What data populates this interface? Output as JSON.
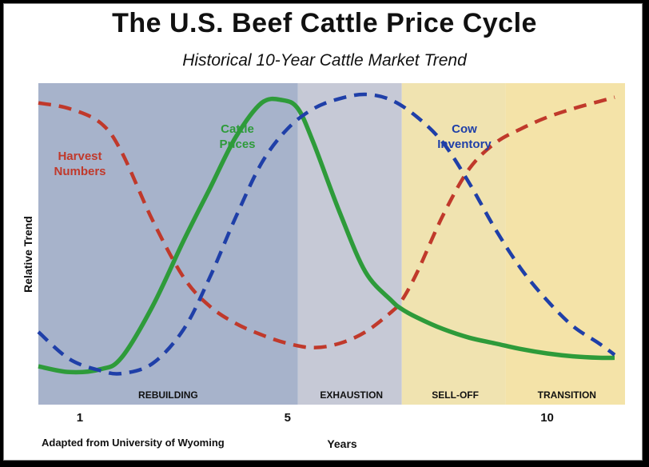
{
  "chart_data": {
    "type": "line",
    "title": "The U.S. Beef Cattle Price Cycle",
    "subtitle": "Historical 10-Year Cattle Market Trend",
    "xlabel": "Years",
    "ylabel": "Relative Trend",
    "credit": "Adapted from University of Wyoming",
    "xlim": [
      0.2,
      11.5
    ],
    "ylim": [
      0,
      10
    ],
    "x_ticks": [
      {
        "value": 1,
        "label": "1"
      },
      {
        "value": 5,
        "label": "5"
      },
      {
        "value": 10,
        "label": "10"
      }
    ],
    "phases": [
      {
        "label": "REBUILDING",
        "start": 0.2,
        "end": 5.2,
        "color": "#a7b3cb"
      },
      {
        "label": "EXHAUSTION",
        "start": 5.2,
        "end": 7.2,
        "color": "#c6c9d6"
      },
      {
        "label": "SELL-OFF",
        "start": 7.2,
        "end": 9.2,
        "color": "#f0e3b0"
      },
      {
        "label": "TRANSITION",
        "start": 9.2,
        "end": 11.5,
        "color": "#f4e3a8"
      }
    ],
    "series": [
      {
        "name": "Harvest Numbers",
        "style": "dashed",
        "color": "#c0392b",
        "label_lines": [
          "Harvest",
          "Numbers"
        ],
        "x": [
          0.2,
          0.8,
          1.4,
          1.8,
          2.4,
          3.0,
          3.5,
          4.0,
          4.5,
          5.0,
          5.5,
          6.0,
          6.5,
          7.0,
          7.2,
          7.5,
          8.0,
          8.5,
          9.0,
          9.5,
          10.0,
          10.5,
          11.0,
          11.3
        ],
        "values": [
          9.7,
          9.5,
          9.0,
          8.0,
          5.6,
          3.6,
          2.6,
          2.0,
          1.6,
          1.3,
          1.15,
          1.3,
          1.7,
          2.4,
          2.8,
          3.8,
          5.8,
          7.4,
          8.3,
          8.8,
          9.2,
          9.5,
          9.75,
          9.9
        ]
      },
      {
        "name": "Cattle Prices",
        "style": "solid",
        "color": "#2e9b3a",
        "label_lines": [
          "Cattle",
          "Prices"
        ],
        "x": [
          0.2,
          0.8,
          1.4,
          1.8,
          2.4,
          3.0,
          3.5,
          4.0,
          4.5,
          4.9,
          5.2,
          5.5,
          6.0,
          6.5,
          7.0,
          7.2,
          7.5,
          8.0,
          8.5,
          9.0,
          9.5,
          10.0,
          10.5,
          11.0,
          11.3
        ],
        "values": [
          0.5,
          0.3,
          0.4,
          0.8,
          2.6,
          4.9,
          6.7,
          8.5,
          9.7,
          9.8,
          9.5,
          8.3,
          5.9,
          3.8,
          2.8,
          2.5,
          2.2,
          1.8,
          1.5,
          1.3,
          1.1,
          0.95,
          0.85,
          0.8,
          0.8
        ]
      },
      {
        "name": "Cow Inventory",
        "style": "dashed",
        "color": "#1f3fa8",
        "label_lines": [
          "Cow",
          "Inventory"
        ],
        "x": [
          0.2,
          0.8,
          1.4,
          1.8,
          2.4,
          3.0,
          3.5,
          4.0,
          4.5,
          5.0,
          5.5,
          6.0,
          6.5,
          7.0,
          7.5,
          8.0,
          8.5,
          9.0,
          9.5,
          10.0,
          10.5,
          11.0,
          11.3
        ],
        "values": [
          1.7,
          0.75,
          0.35,
          0.25,
          0.6,
          1.8,
          3.6,
          5.7,
          7.6,
          8.8,
          9.5,
          9.85,
          10.0,
          9.8,
          9.2,
          8.3,
          6.9,
          5.3,
          3.9,
          2.8,
          1.9,
          1.3,
          0.9
        ]
      }
    ]
  }
}
